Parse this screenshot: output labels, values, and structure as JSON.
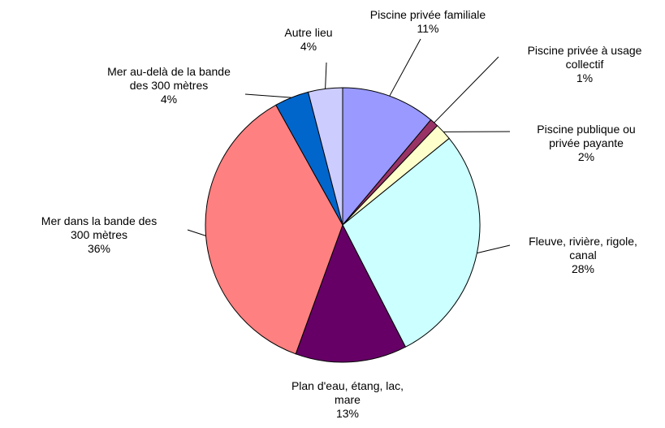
{
  "chart_data": {
    "type": "pie",
    "categories": [
      "Piscine privée familiale",
      "Piscine privée à usage collectif",
      "Piscine publique ou privée payante",
      "Fleuve, rivière, rigole, canal",
      "Plan d'eau, étang, lac, mare",
      "Mer dans la bande des 300 mètres",
      "Mer au-delà de la bande des 300 mètres",
      "Autre lieu"
    ],
    "values": [
      11,
      1,
      2,
      28,
      13,
      36,
      4,
      4
    ],
    "value_labels": [
      "11%",
      "1%",
      "2%",
      "28%",
      "13%",
      "36%",
      "4%",
      "4%"
    ],
    "colors": [
      "#9999ff",
      "#993366",
      "#ffffcc",
      "#ccffff",
      "#660066",
      "#ff8080",
      "#0066cc",
      "#ccccff"
    ]
  }
}
